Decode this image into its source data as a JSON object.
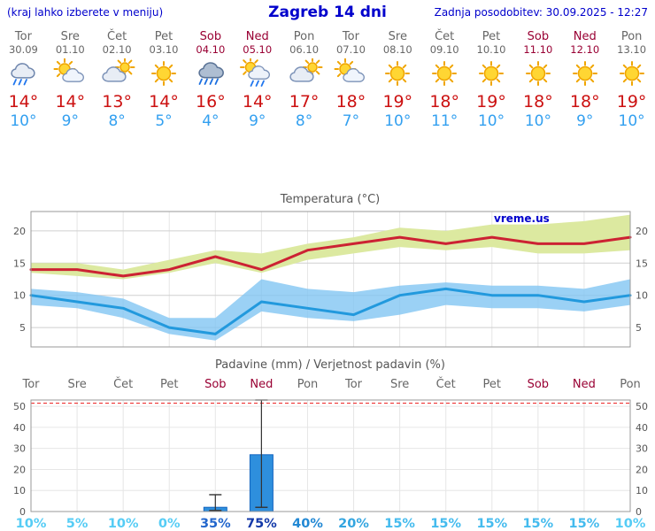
{
  "header": {
    "left_note": "(kraj lahko izberete v meniju)",
    "title": "Zagreb 14 dni",
    "updated": "Zadnja posodobitev: 30.09.2025 - 12:27"
  },
  "colors": {
    "header_blue": "#0000cc",
    "weekday": "#666666",
    "weekend": "#990033",
    "tmax_text": "#cc1111",
    "tmin_text": "#33a0f0",
    "line_max": "#cc2233",
    "line_min": "#2299dd",
    "band_max": "#dce9a0",
    "band_min": "#7fc4f2",
    "bar_fill": "#2e8fdd",
    "bar_stroke": "#1565c0",
    "grid": "#e6e6e6",
    "grid_major": "#cfcfcf",
    "frame": "#999999",
    "dashed_red": "#ee3333",
    "title_gray": "#555555",
    "watermark_blue": "#0000cc"
  },
  "days": [
    {
      "name": "Tor",
      "date": "30.09",
      "weekend": false,
      "icon": "rain-cloud-icon",
      "tmax": "14°",
      "tmin": "10°"
    },
    {
      "name": "Sre",
      "date": "01.10",
      "weekend": false,
      "icon": "sun-cloud-icon",
      "tmax": "14°",
      "tmin": "9°"
    },
    {
      "name": "Čet",
      "date": "02.10",
      "weekend": false,
      "icon": "cloud-sun-icon",
      "tmax": "13°",
      "tmin": "8°"
    },
    {
      "name": "Pet",
      "date": "03.10",
      "weekend": false,
      "icon": "sun-icon",
      "tmax": "14°",
      "tmin": "5°"
    },
    {
      "name": "Sob",
      "date": "04.10",
      "weekend": true,
      "icon": "heavy-rain-icon",
      "tmax": "16°",
      "tmin": "4°"
    },
    {
      "name": "Ned",
      "date": "05.10",
      "weekend": true,
      "icon": "sun-rain-icon",
      "tmax": "14°",
      "tmin": "9°"
    },
    {
      "name": "Pon",
      "date": "06.10",
      "weekend": false,
      "icon": "cloud-sun-icon",
      "tmax": "17°",
      "tmin": "8°"
    },
    {
      "name": "Tor",
      "date": "07.10",
      "weekend": false,
      "icon": "sun-cloud-icon",
      "tmax": "18°",
      "tmin": "7°"
    },
    {
      "name": "Sre",
      "date": "08.10",
      "weekend": false,
      "icon": "sun-icon",
      "tmax": "19°",
      "tmin": "10°"
    },
    {
      "name": "Čet",
      "date": "09.10",
      "weekend": false,
      "icon": "sun-icon",
      "tmax": "18°",
      "tmin": "11°"
    },
    {
      "name": "Pet",
      "date": "10.10",
      "weekend": false,
      "icon": "sun-icon",
      "tmax": "19°",
      "tmin": "10°"
    },
    {
      "name": "Sob",
      "date": "11.10",
      "weekend": true,
      "icon": "sun-icon",
      "tmax": "18°",
      "tmin": "10°"
    },
    {
      "name": "Ned",
      "date": "12.10",
      "weekend": true,
      "icon": "sun-icon",
      "tmax": "18°",
      "tmin": "9°"
    },
    {
      "name": "Pon",
      "date": "13.10",
      "weekend": false,
      "icon": "sun-icon",
      "tmax": "19°",
      "tmin": "10°"
    }
  ],
  "chart_data": [
    {
      "type": "line",
      "title": "Temperatura (°C)",
      "watermark": "vreme.us",
      "x_labels": [
        "Tor",
        "Sre",
        "Čet",
        "Pet",
        "Sob",
        "Ned",
        "Pon",
        "Tor",
        "Sre",
        "Čet",
        "Pet",
        "Sob",
        "Ned",
        "Pon"
      ],
      "ylim": [
        2,
        23
      ],
      "yticks": [
        5,
        10,
        15,
        20
      ],
      "series": [
        {
          "name": "tmax",
          "color": "#cc2233",
          "values": [
            14,
            14,
            13,
            14,
            16,
            14,
            17,
            18,
            19,
            18,
            19,
            18,
            18,
            19
          ]
        },
        {
          "name": "tmax_range_upper",
          "values": [
            15,
            15,
            14,
            15.5,
            17,
            16.5,
            18,
            19,
            20.5,
            20,
            21,
            21,
            21.5,
            22.5
          ]
        },
        {
          "name": "tmax_range_lower",
          "values": [
            13.5,
            13,
            12.5,
            13.5,
            15,
            13.5,
            15.5,
            16.5,
            17.5,
            17,
            17.5,
            16.5,
            16.5,
            17
          ]
        },
        {
          "name": "tmin",
          "color": "#2299dd",
          "values": [
            10,
            9,
            8,
            5,
            4,
            9,
            8,
            7,
            10,
            11,
            10,
            10,
            9,
            10
          ]
        },
        {
          "name": "tmin_range_upper",
          "values": [
            11,
            10.5,
            9.5,
            6.5,
            6.5,
            12.5,
            11,
            10.5,
            11.5,
            12,
            11.5,
            11.5,
            11,
            12.5
          ]
        },
        {
          "name": "tmin_range_lower",
          "values": [
            8.5,
            8,
            6.5,
            4,
            3,
            7.5,
            6.5,
            6,
            7,
            8.5,
            8,
            8,
            7.5,
            8.5
          ]
        }
      ]
    },
    {
      "type": "bar",
      "title": "Padavine (mm) / Verjetnost padavin (%)",
      "categories": [
        "Tor",
        "Sre",
        "Čet",
        "Pet",
        "Sob",
        "Ned",
        "Pon",
        "Tor",
        "Sre",
        "Čet",
        "Pet",
        "Sob",
        "Ned",
        "Pon"
      ],
      "values": [
        0,
        0,
        0,
        0,
        2,
        27,
        0,
        0,
        0,
        0,
        0,
        0,
        0,
        0
      ],
      "whisker_low": [
        0,
        0,
        0,
        0,
        0.5,
        2,
        0,
        0,
        0,
        0,
        0,
        0,
        0,
        0
      ],
      "whisker_high": [
        0,
        0,
        0,
        0,
        8,
        53,
        0,
        0,
        0,
        0,
        0,
        0,
        0,
        0
      ],
      "probabilities": [
        "10%",
        "5%",
        "10%",
        "0%",
        "35%",
        "75%",
        "40%",
        "20%",
        "15%",
        "15%",
        "15%",
        "15%",
        "15%",
        "10%"
      ],
      "prob_colors": [
        "#55ccf5",
        "#55ccf5",
        "#55ccf5",
        "#55ccf5",
        "#2266cc",
        "#1238a8",
        "#2288d4",
        "#33a5e0",
        "#44bbee",
        "#44bbee",
        "#44bbee",
        "#44bbee",
        "#44bbee",
        "#55ccf5"
      ],
      "ylim": [
        0,
        53
      ],
      "yticks": [
        0,
        10,
        20,
        30,
        40,
        50
      ]
    }
  ]
}
